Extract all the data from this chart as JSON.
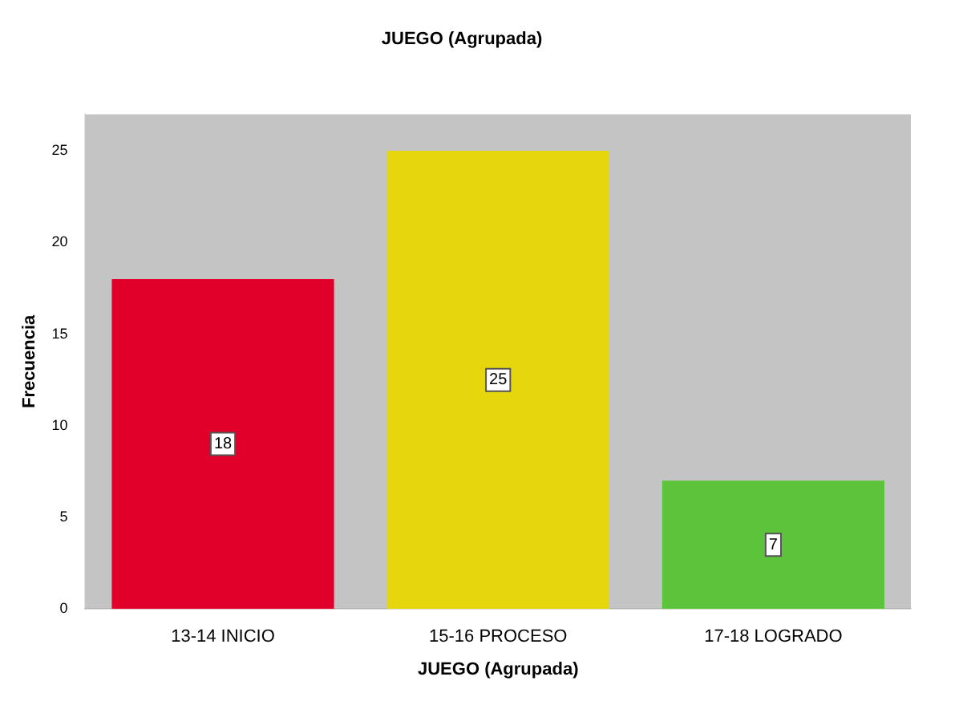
{
  "chart_data": {
    "type": "bar",
    "title": "JUEGO (Agrupada)",
    "xlabel": "JUEGO (Agrupada)",
    "ylabel": "Frecuencia",
    "categories": [
      "13-14 INICIO",
      "15-16 PROCESO",
      "17-18 LOGRADO"
    ],
    "values": [
      18,
      25,
      7
    ],
    "colors": [
      "#e0002a",
      "#e6d60c",
      "#5cc43a"
    ],
    "ylim": [
      0,
      27
    ],
    "yticks": [
      0,
      5,
      10,
      15,
      20,
      25
    ],
    "grid": false,
    "legend": false,
    "data_labels": true
  }
}
